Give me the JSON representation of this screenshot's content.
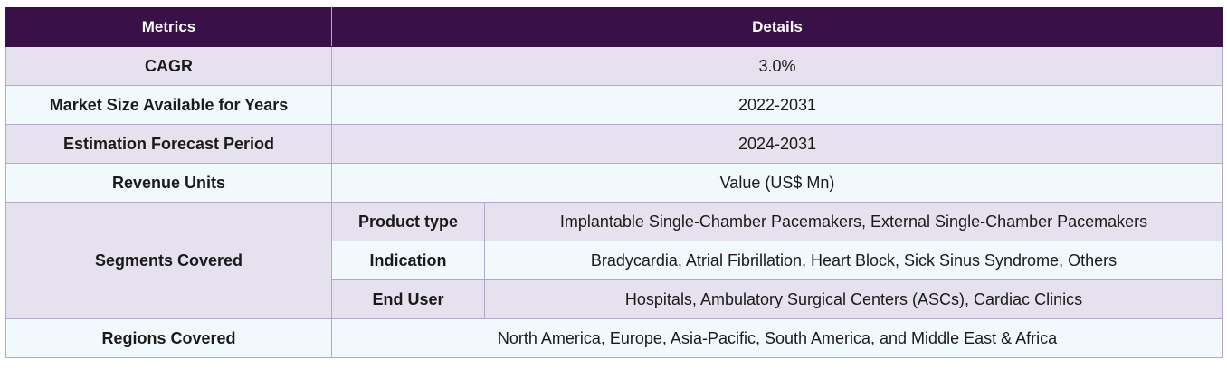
{
  "header": {
    "col1": "Metrics",
    "col2": "Details"
  },
  "rows": {
    "cagr": {
      "label": "CAGR",
      "value": "3.0%"
    },
    "market_size": {
      "label": "Market Size Available for Years",
      "value": "2022-2031"
    },
    "forecast": {
      "label": "Estimation Forecast Period",
      "value": "2024-2031"
    },
    "revenue": {
      "label": "Revenue Units",
      "value": "Value (US$ Mn)"
    },
    "segments": {
      "label": "Segments Covered",
      "items": [
        {
          "name": "Product type",
          "value": "Implantable Single-Chamber Pacemakers, External Single-Chamber Pacemakers"
        },
        {
          "name": "Indication",
          "value": "Bradycardia, Atrial Fibrillation, Heart Block, Sick Sinus Syndrome, Others"
        },
        {
          "name": "End User",
          "value": "Hospitals, Ambulatory Surgical Centers (ASCs), Cardiac Clinics"
        }
      ]
    },
    "regions": {
      "label": "Regions Covered",
      "value": "North America, Europe, Asia-Pacific, South America, and Middle East & Africa"
    }
  },
  "colors": {
    "header_bg": "#3a1049",
    "row_shaded": "#e6e1ee",
    "row_light": "#f2f9fc",
    "border": "#b3a7cc"
  }
}
